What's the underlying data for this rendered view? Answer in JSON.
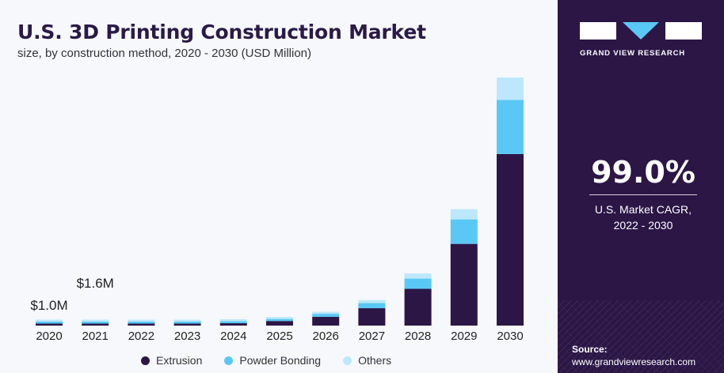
{
  "header": {
    "title": "U.S. 3D Printing Construction Market",
    "subtitle": "size, by construction method, 2020 - 2030 (USD Million)"
  },
  "brand": {
    "name": "GRAND VIEW RESEARCH"
  },
  "sidebar": {
    "cagr_value": "99.0%",
    "cagr_label_1": "U.S. Market CAGR,",
    "cagr_label_2": "2022 - 2030",
    "source_label": "Source:",
    "source_url": "www.grandviewresearch.com"
  },
  "colors": {
    "Extrusion": "#2b1646",
    "Powder Bonding": "#5ac8f5",
    "Others": "#bde8fb",
    "sidebar_bg": "#2b1646",
    "title": "#2a1a47"
  },
  "chart_data": {
    "type": "bar",
    "stacked": true,
    "title": "U.S. 3D Printing Construction Market",
    "subtitle": "size, by construction method, 2020 - 2030 (USD Million)",
    "categories": [
      "2020",
      "2021",
      "2022",
      "2023",
      "2024",
      "2025",
      "2026",
      "2027",
      "2028",
      "2029",
      "2030"
    ],
    "series": [
      {
        "name": "Extrusion",
        "values": [
          0.4,
          0.6,
          0.9,
          1.4,
          2.3,
          4.5,
          8.5,
          17,
          36,
          80,
          168
        ]
      },
      {
        "name": "Powder Bonding",
        "values": [
          0.4,
          0.7,
          1.0,
          1.5,
          1.1,
          2.0,
          3.0,
          5,
          10,
          24,
          53
        ]
      },
      {
        "name": "Others",
        "values": [
          0.2,
          0.3,
          0.5,
          0.8,
          0.4,
          0.8,
          1.2,
          3,
          5,
          10,
          22
        ]
      }
    ],
    "annotations": [
      {
        "category": "2020",
        "text": "$1.0M"
      },
      {
        "category": "2021",
        "text": "$1.6M"
      }
    ],
    "ylim": [
      0,
      243
    ],
    "grid": false,
    "legend": "bottom"
  }
}
